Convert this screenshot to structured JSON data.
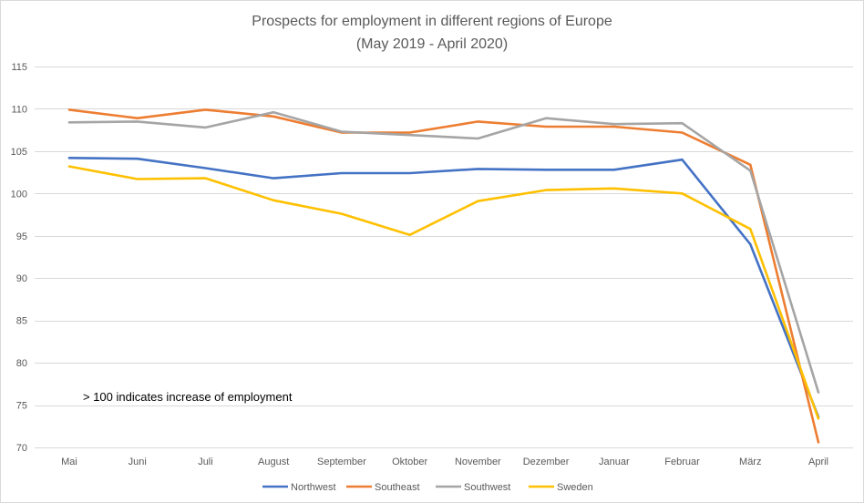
{
  "chart_data": {
    "type": "line",
    "title": "Prospects for employment in different regions of Europe",
    "subtitle": "(May 2019 - April 2020)",
    "xlabel": "",
    "ylabel": "",
    "categories": [
      "Mai",
      "Juni",
      "Juli",
      "August",
      "September",
      "Oktober",
      "November",
      "Dezember",
      "Januar",
      "Februar",
      "März",
      "April"
    ],
    "ylim": [
      70,
      115
    ],
    "yticks": [
      70,
      75,
      80,
      85,
      90,
      95,
      100,
      105,
      110,
      115
    ],
    "grid": true,
    "legend": "bottom",
    "annotation": "> 100 indicates increase of employment",
    "series": [
      {
        "name": "Northwest",
        "color": "#4472C4",
        "values": [
          104.2,
          104.1,
          103.0,
          101.8,
          102.4,
          102.4,
          102.9,
          102.8,
          102.8,
          104.0,
          94.0,
          73.6
        ]
      },
      {
        "name": "Southeast",
        "color": "#ED7D31",
        "values": [
          109.9,
          108.9,
          109.9,
          109.1,
          107.2,
          107.2,
          108.5,
          107.9,
          107.9,
          107.2,
          103.4,
          70.6
        ]
      },
      {
        "name": "Southwest",
        "color": "#A5A5A5",
        "values": [
          108.4,
          108.5,
          107.8,
          109.6,
          107.3,
          106.9,
          106.5,
          108.9,
          108.2,
          108.3,
          102.7,
          76.5
        ]
      },
      {
        "name": "Sweden",
        "color": "#FFC000",
        "values": [
          103.2,
          101.7,
          101.8,
          99.2,
          97.6,
          95.1,
          99.1,
          100.4,
          100.6,
          100.0,
          95.8,
          73.4
        ]
      }
    ]
  }
}
